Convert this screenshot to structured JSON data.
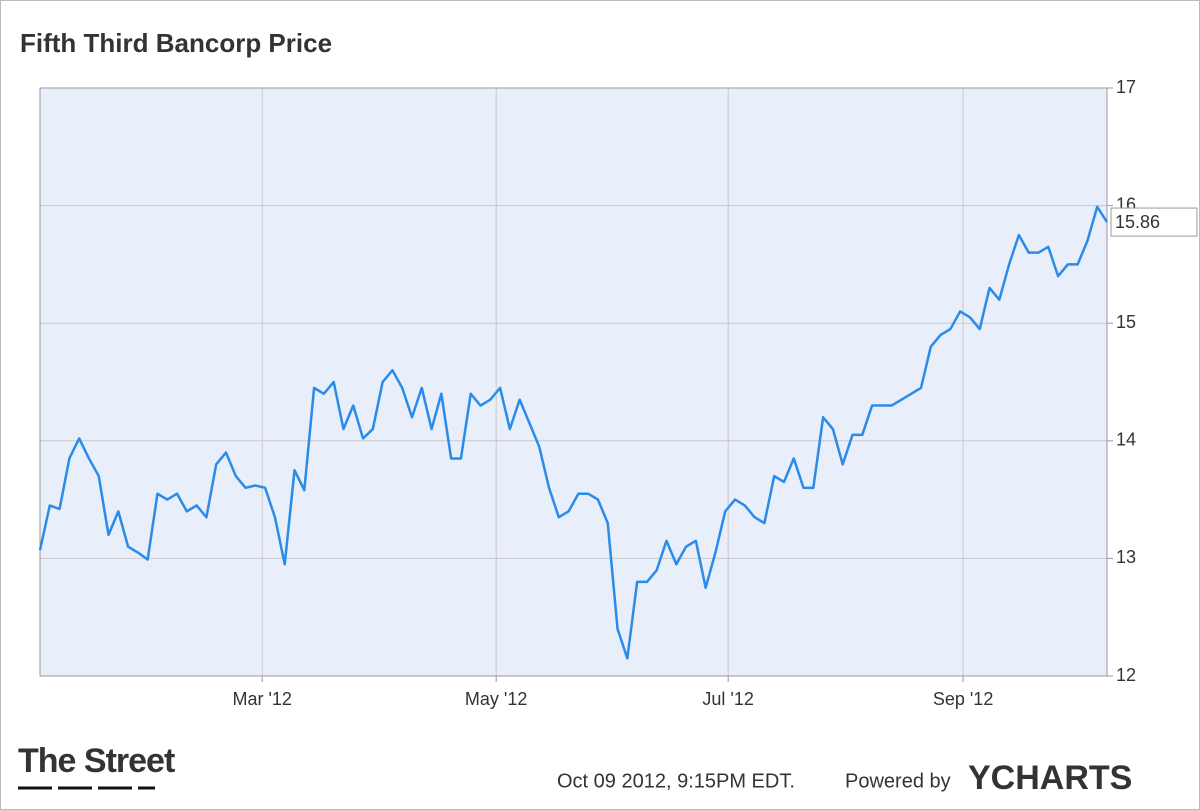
{
  "chart_data": {
    "type": "line",
    "title": "Fifth Third Bancorp Price",
    "series": [
      {
        "name": "Fifth Third Bancorp",
        "color": "#2a8be8",
        "values": [
          13.07,
          13.45,
          13.42,
          13.85,
          14.02,
          13.85,
          13.7,
          13.2,
          13.4,
          13.1,
          13.05,
          12.99,
          13.55,
          13.5,
          13.55,
          13.4,
          13.45,
          13.35,
          13.8,
          13.9,
          13.7,
          13.6,
          13.62,
          13.6,
          13.35,
          12.95,
          13.75,
          13.58,
          14.45,
          14.4,
          14.5,
          14.1,
          14.3,
          14.02,
          14.1,
          14.5,
          14.6,
          14.45,
          14.2,
          14.45,
          14.1,
          14.4,
          13.85,
          13.85,
          14.4,
          14.3,
          14.35,
          14.45,
          14.1,
          14.35,
          14.15,
          13.95,
          13.6,
          13.35,
          13.4,
          13.55,
          13.55,
          13.5,
          13.3,
          12.4,
          12.15,
          12.8,
          12.8,
          12.9,
          13.15,
          12.95,
          13.1,
          13.15,
          12.75,
          13.05,
          13.4,
          13.5,
          13.45,
          13.35,
          13.3,
          13.7,
          13.65,
          13.85,
          13.6,
          13.6,
          14.2,
          14.1,
          13.8,
          14.05,
          14.05,
          14.3,
          14.3,
          14.3,
          14.35,
          14.4,
          14.45,
          14.8,
          14.9,
          14.95,
          15.1,
          15.05,
          14.95,
          15.3,
          15.2,
          15.5,
          15.75,
          15.6,
          15.6,
          15.65,
          15.4,
          15.5,
          15.5,
          15.7,
          15.99,
          15.86
        ]
      }
    ],
    "xlim": [
      0,
      109
    ],
    "xticks": [
      {
        "value": 22.7,
        "label": "Mar '12"
      },
      {
        "value": 46.6,
        "label": "May '12"
      },
      {
        "value": 70.3,
        "label": "Jul '12"
      },
      {
        "value": 94.3,
        "label": "Sep '12"
      }
    ],
    "ylim": [
      12,
      17
    ],
    "yticks": [
      12,
      13,
      14,
      15,
      16,
      17
    ],
    "grid": true,
    "plot_background": "#e8eefa"
  },
  "footer": {
    "logo": "The Street",
    "timestamp": "Oct 09 2012, 9:15PM EDT.",
    "powered_by": "Powered by",
    "brand": "YCHARTS"
  }
}
